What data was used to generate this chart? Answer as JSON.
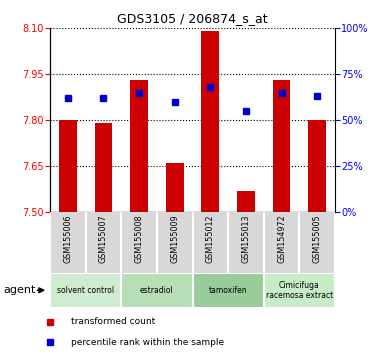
{
  "title": "GDS3105 / 206874_s_at",
  "samples": [
    "GSM155006",
    "GSM155007",
    "GSM155008",
    "GSM155009",
    "GSM155012",
    "GSM155013",
    "GSM154972",
    "GSM155005"
  ],
  "red_values": [
    7.8,
    7.79,
    7.93,
    7.66,
    8.09,
    7.57,
    7.93,
    7.8
  ],
  "blue_values": [
    62,
    62,
    65,
    60,
    68,
    55,
    65,
    63
  ],
  "ylim_left": [
    7.5,
    8.1
  ],
  "ylim_right": [
    0,
    100
  ],
  "left_ticks": [
    7.5,
    7.65,
    7.8,
    7.95,
    8.1
  ],
  "right_ticks": [
    0,
    25,
    50,
    75,
    100
  ],
  "right_tick_labels": [
    "0%",
    "25%",
    "50%",
    "75%",
    "100%"
  ],
  "groups": [
    {
      "label": "solvent control",
      "start": 0,
      "end": 2,
      "color": "#d0ecd0"
    },
    {
      "label": "estradiol",
      "start": 2,
      "end": 4,
      "color": "#b8deb8"
    },
    {
      "label": "tamoxifen",
      "start": 4,
      "end": 6,
      "color": "#98cc98"
    },
    {
      "label": "Cimicifuga\nracemosa extract",
      "start": 6,
      "end": 8,
      "color": "#c8ecc8"
    }
  ],
  "red_color": "#cc0000",
  "blue_color": "#0000cc",
  "bar_width": 0.5,
  "agent_label": "agent",
  "legend_red": "transformed count",
  "legend_blue": "percentile rank within the sample",
  "base_value": 7.5,
  "sample_bg": "#d8d8d8"
}
